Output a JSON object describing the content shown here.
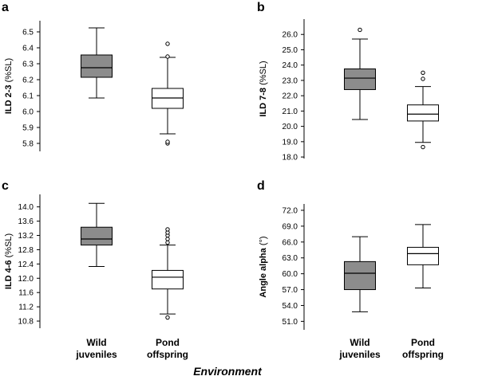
{
  "x_axis_title": "Environment",
  "chart_data": [
    {
      "type": "box",
      "panel": "a",
      "ylabel_main": "ILD 2-3",
      "ylabel_unit": "(%SL)",
      "yticks": [
        5.8,
        5.9,
        6.0,
        6.1,
        6.2,
        6.3,
        6.4,
        6.5
      ],
      "ytick_labels": [
        "5.8",
        "5.9",
        "6.0",
        "6.1",
        "6.2",
        "6.3",
        "6.4",
        "6.5"
      ],
      "ylim": [
        5.75,
        6.57
      ],
      "categories": [
        "Wild juveniles",
        "Pond offspring"
      ],
      "show_categories": false,
      "boxes": [
        {
          "name": "Wild juveniles",
          "fill": "#8c8c8c",
          "whisker_low": 6.085,
          "q1": 6.215,
          "median": 6.275,
          "q3": 6.355,
          "whisker_high": 6.525,
          "outliers": []
        },
        {
          "name": "Pond offspring",
          "fill": "#ffffff",
          "whisker_low": 5.86,
          "q1": 6.02,
          "median": 6.085,
          "q3": 6.145,
          "whisker_high": 6.34,
          "outliers": [
            5.8,
            5.81,
            6.345,
            6.425
          ]
        }
      ]
    },
    {
      "type": "box",
      "panel": "b",
      "ylabel_main": "ILD 7-8",
      "ylabel_unit": "(%SL)",
      "yticks": [
        18.0,
        19.0,
        20.0,
        21.0,
        22.0,
        23.0,
        24.0,
        25.0,
        26.0
      ],
      "ytick_labels": [
        "18.0",
        "19.0",
        "20.0",
        "21.0",
        "22.0",
        "23.0",
        "24.0",
        "25.0",
        "26.0"
      ],
      "ylim": [
        17.9,
        27.0
      ],
      "categories": [
        "Wild juveniles",
        "Pond offspring"
      ],
      "show_categories": false,
      "boxes": [
        {
          "name": "Wild juveniles",
          "fill": "#8c8c8c",
          "whisker_low": 20.45,
          "q1": 22.4,
          "median": 23.15,
          "q3": 23.75,
          "whisker_high": 25.7,
          "outliers": [
            26.3
          ]
        },
        {
          "name": "Pond offspring",
          "fill": "#ffffff",
          "whisker_low": 18.95,
          "q1": 20.35,
          "median": 20.8,
          "q3": 21.4,
          "whisker_high": 22.6,
          "outliers": [
            18.65,
            23.1,
            23.5
          ]
        }
      ]
    },
    {
      "type": "box",
      "panel": "c",
      "ylabel_main": "ILD 4-6",
      "ylabel_unit": "(%SL)",
      "yticks": [
        10.8,
        11.2,
        11.6,
        12.0,
        12.4,
        12.8,
        13.2,
        13.6,
        14.0
      ],
      "ytick_labels": [
        "10.8",
        "11.2",
        "11.6",
        "12.0",
        "12.4",
        "12.8",
        "13.2",
        "13.6",
        "14.0"
      ],
      "ylim": [
        10.6,
        14.35
      ],
      "categories": [
        "Wild juveniles",
        "Pond offspring"
      ],
      "show_categories": true,
      "boxes": [
        {
          "name": "Wild juveniles",
          "fill": "#8c8c8c",
          "whisker_low": 12.33,
          "q1": 12.93,
          "median": 13.1,
          "q3": 13.43,
          "whisker_high": 14.1,
          "outliers": []
        },
        {
          "name": "Pond offspring",
          "fill": "#ffffff",
          "whisker_low": 11.0,
          "q1": 11.7,
          "median": 12.03,
          "q3": 12.22,
          "whisker_high": 12.93,
          "outliers": [
            10.9,
            13.0,
            13.1,
            13.2,
            13.28,
            13.37
          ]
        }
      ]
    },
    {
      "type": "box",
      "panel": "d",
      "ylabel_main": "Angle alpha",
      "ylabel_unit": "(°)",
      "yticks": [
        51.0,
        54.0,
        57.0,
        60.0,
        63.0,
        66.0,
        69.0,
        72.0
      ],
      "ytick_labels": [
        "51.0",
        "54.0",
        "57.0",
        "60.0",
        "63.0",
        "66.0",
        "69.0",
        "72.0"
      ],
      "ylim": [
        49.4,
        73.2
      ],
      "categories": [
        "Wild juveniles",
        "Pond offspring"
      ],
      "show_categories": true,
      "boxes": [
        {
          "name": "Wild juveniles",
          "fill": "#8c8c8c",
          "whisker_low": 52.8,
          "q1": 57.0,
          "median": 60.1,
          "q3": 62.3,
          "whisker_high": 67.0,
          "outliers": []
        },
        {
          "name": "Pond offspring",
          "fill": "#ffffff",
          "whisker_low": 57.3,
          "q1": 61.7,
          "median": 63.8,
          "q3": 65.0,
          "whisker_high": 69.3,
          "outliers": []
        }
      ]
    }
  ]
}
